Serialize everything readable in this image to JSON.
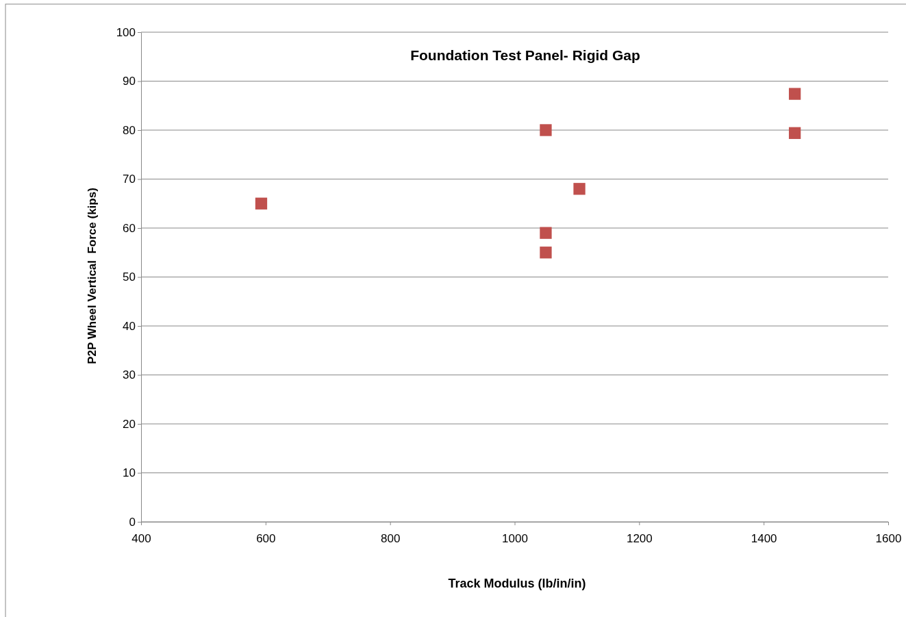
{
  "chart_data": {
    "type": "scatter",
    "title": "Foundation Test Panel- Rigid Gap",
    "xlabel": "Track Modulus (lb/in/in)",
    "ylabel": "P2P Wheel Vertical  Force (kips)",
    "series": [
      {
        "color": "#c0504d",
        "x": [
          593,
          1050,
          1050,
          1050,
          1104,
          1450,
          1450
        ],
        "values": [
          65,
          80,
          59,
          55,
          68,
          87.4,
          79.4
        ]
      }
    ],
    "xlim": [
      400,
      1600
    ],
    "xticks": [
      400,
      600,
      800,
      1000,
      1200,
      1400,
      1600
    ],
    "ylim": [
      0,
      100
    ],
    "yticks": [
      0,
      10,
      20,
      30,
      40,
      50,
      60,
      70,
      80,
      90,
      100
    ],
    "grid": "y",
    "marker": "square"
  }
}
